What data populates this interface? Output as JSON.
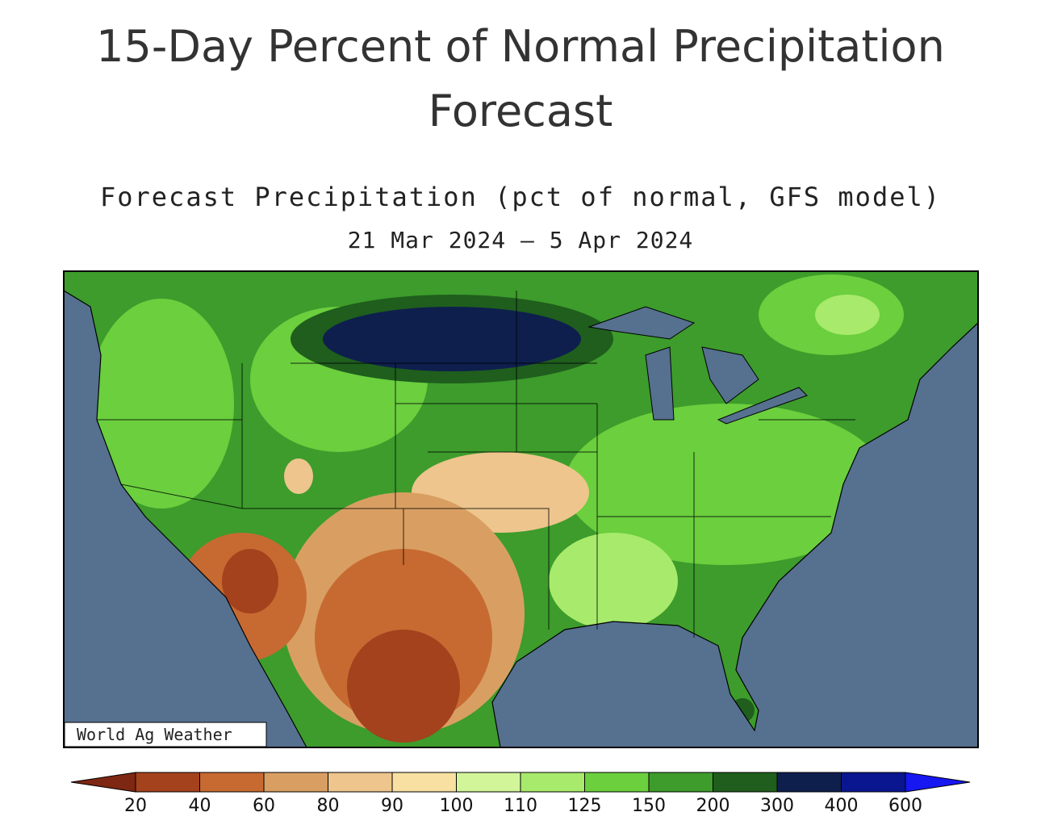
{
  "title": "15-Day Percent of Normal Precipitation Forecast",
  "map": {
    "title": "Forecast Precipitation (pct of normal, GFS model)",
    "date_range": "21 Mar 2024 — 5 Apr 2024",
    "credit": "World Ag Weather"
  },
  "legend": {
    "colors": [
      "#7e2712",
      "#a3421d",
      "#c76a31",
      "#d99f62",
      "#edc58d",
      "#f7e0a2",
      "#d2f59a",
      "#a8ea6c",
      "#6bcf3e",
      "#3d9c2b",
      "#1f5e1d",
      "#0e1f4e",
      "#0a168f",
      "#1717f2"
    ],
    "labels": [
      20,
      40,
      60,
      80,
      90,
      100,
      110,
      125,
      150,
      200,
      300,
      400,
      600
    ]
  }
}
